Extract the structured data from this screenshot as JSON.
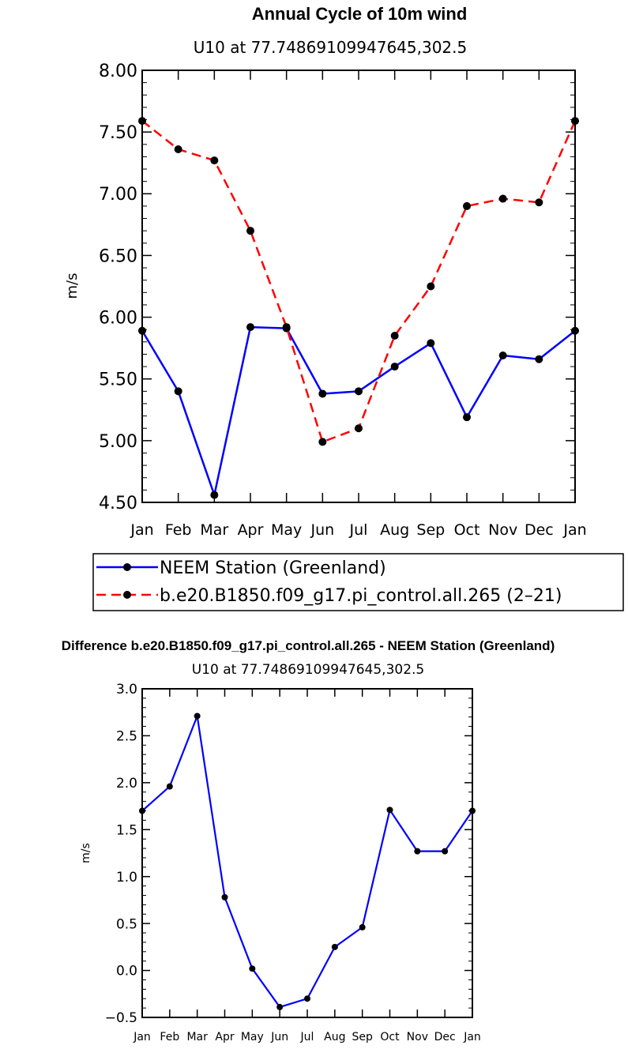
{
  "chart_data": [
    {
      "type": "line",
      "title": "Annual Cycle of 10m wind",
      "subtitle": "U10 at 77.74869109947645,302.5",
      "xlabel": "",
      "ylabel": "m/s",
      "categories": [
        "Jan",
        "Feb",
        "Mar",
        "Apr",
        "May",
        "Jun",
        "Jul",
        "Aug",
        "Sep",
        "Oct",
        "Nov",
        "Dec",
        "Jan"
      ],
      "ylim": [
        4.5,
        8.0
      ],
      "yticks": [
        "4.50",
        "5.00",
        "5.50",
        "6.00",
        "6.50",
        "7.00",
        "7.50",
        "8.00"
      ],
      "series": [
        {
          "name": "NEEM Station (Greenland)",
          "color": "#0000ff",
          "dash": "solid",
          "values": [
            5.89,
            5.4,
            4.56,
            5.92,
            5.91,
            5.38,
            5.4,
            5.6,
            5.79,
            5.19,
            5.69,
            5.66,
            5.89
          ]
        },
        {
          "name": "b.e20.B1850.f09_g17.pi_control.all.265 (2–21)",
          "color": "#ff0000",
          "dash": "dashed",
          "values": [
            7.59,
            7.36,
            7.27,
            6.7,
            5.92,
            4.99,
            5.1,
            5.85,
            6.25,
            6.9,
            6.96,
            6.93,
            7.59
          ]
        }
      ],
      "legend_position": "bottom"
    },
    {
      "type": "line",
      "title": "Difference b.e20.B1850.f09_g17.pi_control.all.265 - NEEM Station (Greenland)",
      "subtitle": "U10 at 77.74869109947645,302.5",
      "xlabel": "",
      "ylabel": "m/s",
      "categories": [
        "Jan",
        "Feb",
        "Mar",
        "Apr",
        "May",
        "Jun",
        "Jul",
        "Aug",
        "Sep",
        "Oct",
        "Nov",
        "Dec",
        "Jan"
      ],
      "ylim": [
        -0.5,
        3.0
      ],
      "yticks": [
        "−0.5",
        "0.0",
        "0.5",
        "1.0",
        "1.5",
        "2.0",
        "2.5",
        "3.0"
      ],
      "series": [
        {
          "name": "Difference",
          "color": "#0000ff",
          "dash": "solid",
          "values": [
            1.7,
            1.96,
            2.71,
            0.78,
            0.02,
            -0.39,
            -0.3,
            0.25,
            0.46,
            1.71,
            1.27,
            1.27,
            1.7
          ]
        }
      ]
    }
  ]
}
